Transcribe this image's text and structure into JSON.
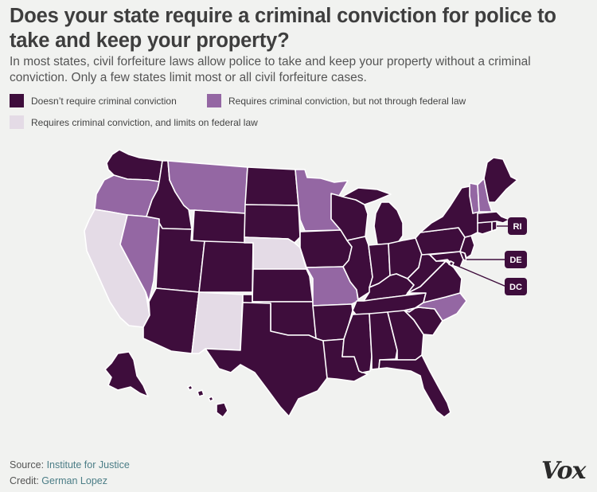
{
  "header": {
    "title": "Does your state require a criminal conviction for police to take and keep your property?",
    "subtitle": "In most states, civil forfeiture laws allow police to take and keep your property without a criminal conviction. Only a few states limit most or all civil forfeiture cases."
  },
  "legend": [
    {
      "label": "Doesn’t require criminal conviction",
      "color": "#3e0d3c"
    },
    {
      "label": "Requires criminal conviction, but not through federal law",
      "color": "#9467a3"
    },
    {
      "label": "Requires criminal conviction, and limits on federal law",
      "color": "#e4dbe6"
    }
  ],
  "map": {
    "categories": {
      "none": "Doesn’t require criminal conviction",
      "state_only": "Requires criminal conviction, but not through federal law",
      "full": "Requires criminal conviction, and limits on federal law"
    },
    "colors": {
      "none": "#3e0d3c",
      "state_only": "#9467a3",
      "full": "#e4dbe6"
    },
    "states": {
      "WA": "none",
      "OR": "state_only",
      "CA": "full",
      "NV": "state_only",
      "ID": "none",
      "MT": "state_only",
      "WY": "none",
      "UT": "none",
      "AZ": "none",
      "CO": "none",
      "NM": "full",
      "ND": "none",
      "SD": "none",
      "NE": "full",
      "KS": "none",
      "OK": "none",
      "TX": "none",
      "MN": "state_only",
      "IA": "none",
      "MO": "state_only",
      "AR": "none",
      "LA": "none",
      "WI": "none",
      "IL": "none",
      "MI": "none",
      "IN": "none",
      "OH": "none",
      "KY": "none",
      "TN": "none",
      "MS": "none",
      "AL": "none",
      "GA": "none",
      "FL": "none",
      "SC": "none",
      "NC": "state_only",
      "VA": "none",
      "WV": "none",
      "MD": "none",
      "DE": "none",
      "DC": "none",
      "PA": "none",
      "NJ": "none",
      "NY": "none",
      "CT": "none",
      "RI": "none",
      "MA": "none",
      "VT": "state_only",
      "NH": "state_only",
      "ME": "none",
      "AK": "none",
      "HI": "none"
    },
    "callouts": [
      "RI",
      "DE",
      "DC"
    ]
  },
  "footer": {
    "source_label": "Source: ",
    "source_value": "Institute for Justice",
    "credit_label": "Credit: ",
    "credit_value": "German Lopez",
    "logo": "Vox"
  }
}
